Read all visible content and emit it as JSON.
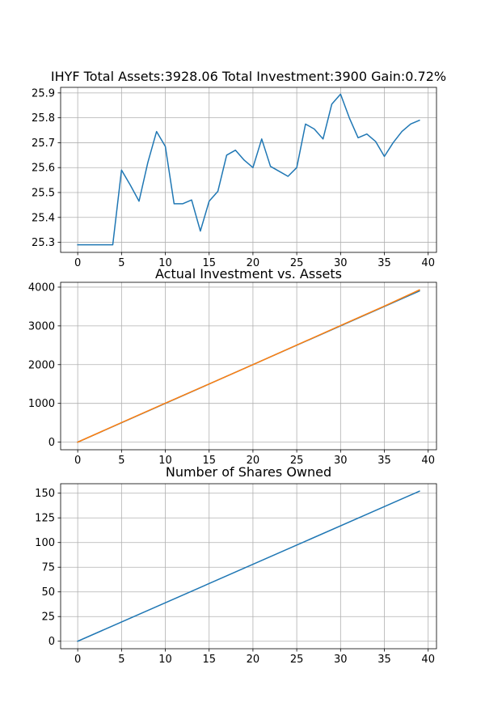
{
  "chart_data": [
    {
      "type": "line",
      "title": "IHYF Total Assets:3928.06  Total Investment:3900  Gain:0.72%",
      "xlabel": "",
      "ylabel": "",
      "xlim": [
        -1.95,
        40.95
      ],
      "ylim": [
        25.2596,
        25.9223
      ],
      "xticks": [
        0,
        5,
        10,
        15,
        20,
        25,
        30,
        35,
        40
      ],
      "yticks": [
        25.3,
        25.4,
        25.5,
        25.6,
        25.7,
        25.8,
        25.9
      ],
      "ytick_labels": [
        "25.3",
        "25.4",
        "25.5",
        "25.6",
        "25.7",
        "25.8",
        "25.9"
      ],
      "grid": true,
      "series": [
        {
          "color": "#1f77b4",
          "x": [
            0,
            1,
            2,
            3,
            4,
            5,
            6,
            7,
            8,
            9,
            10,
            11,
            12,
            13,
            14,
            15,
            16,
            17,
            18,
            19,
            20,
            21,
            22,
            23,
            24,
            25,
            26,
            27,
            28,
            29,
            30,
            31,
            32,
            33,
            34,
            35,
            36,
            37,
            38,
            39
          ],
          "values": [
            25.29,
            25.29,
            25.29,
            25.29,
            25.29,
            25.59,
            25.53,
            25.465,
            25.62,
            25.745,
            25.685,
            25.455,
            25.455,
            25.47,
            25.345,
            25.465,
            25.505,
            25.65,
            25.67,
            25.63,
            25.6,
            25.715,
            25.605,
            25.585,
            25.565,
            25.6,
            25.775,
            25.755,
            25.715,
            25.855,
            25.895,
            25.8,
            25.72,
            25.735,
            25.705,
            25.645,
            25.7,
            25.745,
            25.775,
            25.79
          ]
        }
      ]
    },
    {
      "type": "line",
      "title": "Actual Investment vs. Assets",
      "xlabel": "",
      "ylabel": "",
      "xlim": [
        -1.95,
        40.95
      ],
      "ylim": [
        -196.4,
        4124.4
      ],
      "xticks": [
        0,
        5,
        10,
        15,
        20,
        25,
        30,
        35,
        40
      ],
      "yticks": [
        0,
        1000,
        2000,
        3000,
        4000
      ],
      "ytick_labels": [
        "0",
        "1000",
        "2000",
        "3000",
        "4000"
      ],
      "grid": true,
      "series": [
        {
          "color": "#1f77b4",
          "x": [
            0,
            39
          ],
          "values": [
            0,
            3900
          ]
        },
        {
          "color": "#ff7f0e",
          "x": [
            0,
            5,
            10,
            15,
            20,
            25,
            30,
            35,
            39
          ],
          "values": [
            0,
            505,
            1005,
            1500,
            2000,
            2505,
            3010,
            3510,
            3928.06
          ]
        }
      ]
    },
    {
      "type": "line",
      "title": "Number of Shares Owned",
      "xlabel": "",
      "ylabel": "",
      "xlim": [
        -1.95,
        40.95
      ],
      "ylim": [
        -7.6,
        159.6
      ],
      "xticks": [
        0,
        5,
        10,
        15,
        20,
        25,
        30,
        35,
        40
      ],
      "yticks": [
        0,
        25,
        50,
        75,
        100,
        125,
        150
      ],
      "ytick_labels": [
        "0",
        "25",
        "50",
        "75",
        "100",
        "125",
        "150"
      ],
      "grid": true,
      "series": [
        {
          "color": "#1f77b4",
          "x": [
            0,
            39
          ],
          "values": [
            0,
            152
          ]
        }
      ]
    }
  ]
}
